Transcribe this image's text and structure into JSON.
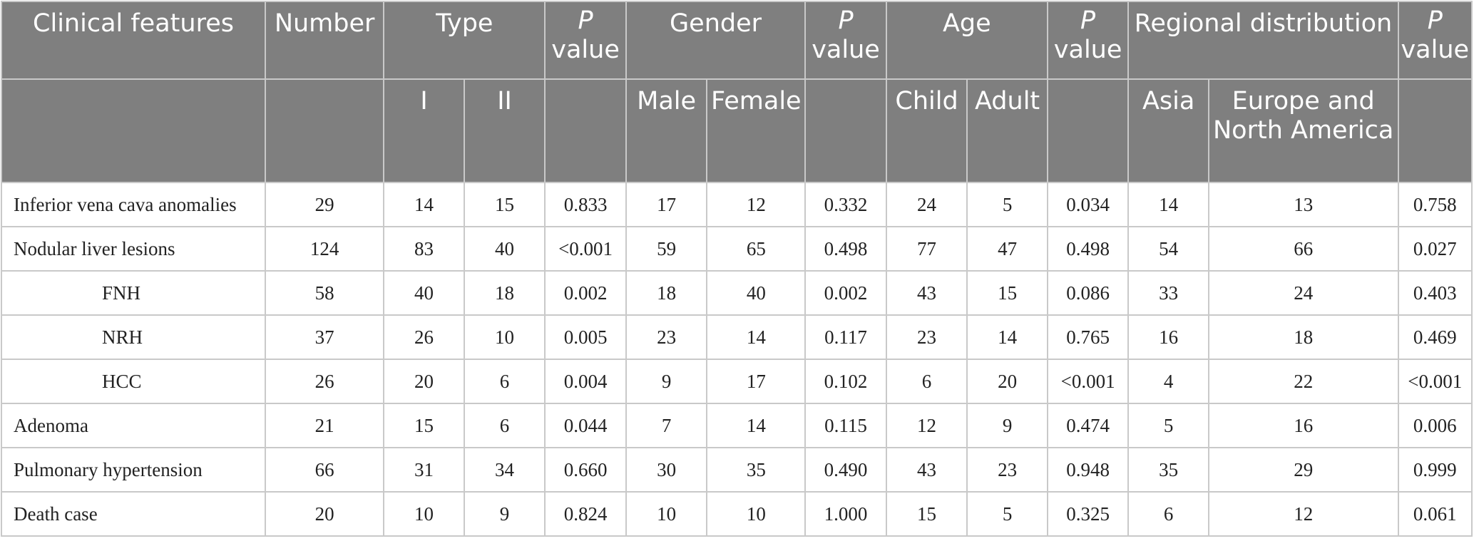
{
  "header": {
    "clinical_features": "Clinical features",
    "number": "Number",
    "type": "Type",
    "gender": "Gender",
    "age": "Age",
    "regional": "Regional distribution",
    "p_letter": "P",
    "value_word": "value",
    "type_i": "I",
    "type_ii": "II",
    "male": "Male",
    "female": "Female",
    "child": "Child",
    "adult": "Adult",
    "asia": "Asia",
    "europe": "Europe and North America"
  },
  "rows": [
    {
      "feature": "Inferior vena cava anomalies",
      "number": "29",
      "type_i": "14",
      "type_ii": "15",
      "p_type": "0.833",
      "male": "17",
      "female": "12",
      "p_gender": "0.332",
      "child": "24",
      "adult": "5",
      "p_age": "0.034",
      "asia": "14",
      "europe": "13",
      "p_region": "0.758"
    },
    {
      "feature": "Nodular liver lesions",
      "number": "124",
      "type_i": "83",
      "type_ii": "40",
      "p_type": "<0.001",
      "male": "59",
      "female": "65",
      "p_gender": "0.498",
      "child": "77",
      "adult": "47",
      "p_age": "0.498",
      "asia": "54",
      "europe": "66",
      "p_region": "0.027"
    },
    {
      "feature": "FNH",
      "number": "58",
      "type_i": "40",
      "type_ii": "18",
      "p_type": "0.002",
      "male": "18",
      "female": "40",
      "p_gender": "0.002",
      "child": "43",
      "adult": "15",
      "p_age": "0.086",
      "asia": "33",
      "europe": "24",
      "p_region": "0.403"
    },
    {
      "feature": "NRH",
      "number": "37",
      "type_i": "26",
      "type_ii": "10",
      "p_type": "0.005",
      "male": "23",
      "female": "14",
      "p_gender": "0.117",
      "child": "23",
      "adult": "14",
      "p_age": "0.765",
      "asia": "16",
      "europe": "18",
      "p_region": "0.469"
    },
    {
      "feature": "HCC",
      "number": "26",
      "type_i": "20",
      "type_ii": "6",
      "p_type": "0.004",
      "male": "9",
      "female": "17",
      "p_gender": "0.102",
      "child": "6",
      "adult": "20",
      "p_age": "<0.001",
      "asia": "4",
      "europe": "22",
      "p_region": "<0.001"
    },
    {
      "feature": "Adenoma",
      "number": "21",
      "type_i": "15",
      "type_ii": "6",
      "p_type": "0.044",
      "male": "7",
      "female": "14",
      "p_gender": "0.115",
      "child": "12",
      "adult": "9",
      "p_age": "0.474",
      "asia": "5",
      "europe": "16",
      "p_region": "0.006"
    },
    {
      "feature": "Pulmonary hypertension",
      "number": "66",
      "type_i": "31",
      "type_ii": "34",
      "p_type": "0.660",
      "male": "30",
      "female": "35",
      "p_gender": "0.490",
      "child": "43",
      "adult": "23",
      "p_age": "0.948",
      "asia": "35",
      "europe": "29",
      "p_region": "0.999"
    },
    {
      "feature": "Death case",
      "number": "20",
      "type_i": "10",
      "type_ii": "9",
      "p_type": "0.824",
      "male": "10",
      "female": "10",
      "p_gender": "1.000",
      "child": "15",
      "adult": "5",
      "p_age": "0.325",
      "asia": "6",
      "europe": "12",
      "p_region": "0.061"
    }
  ]
}
